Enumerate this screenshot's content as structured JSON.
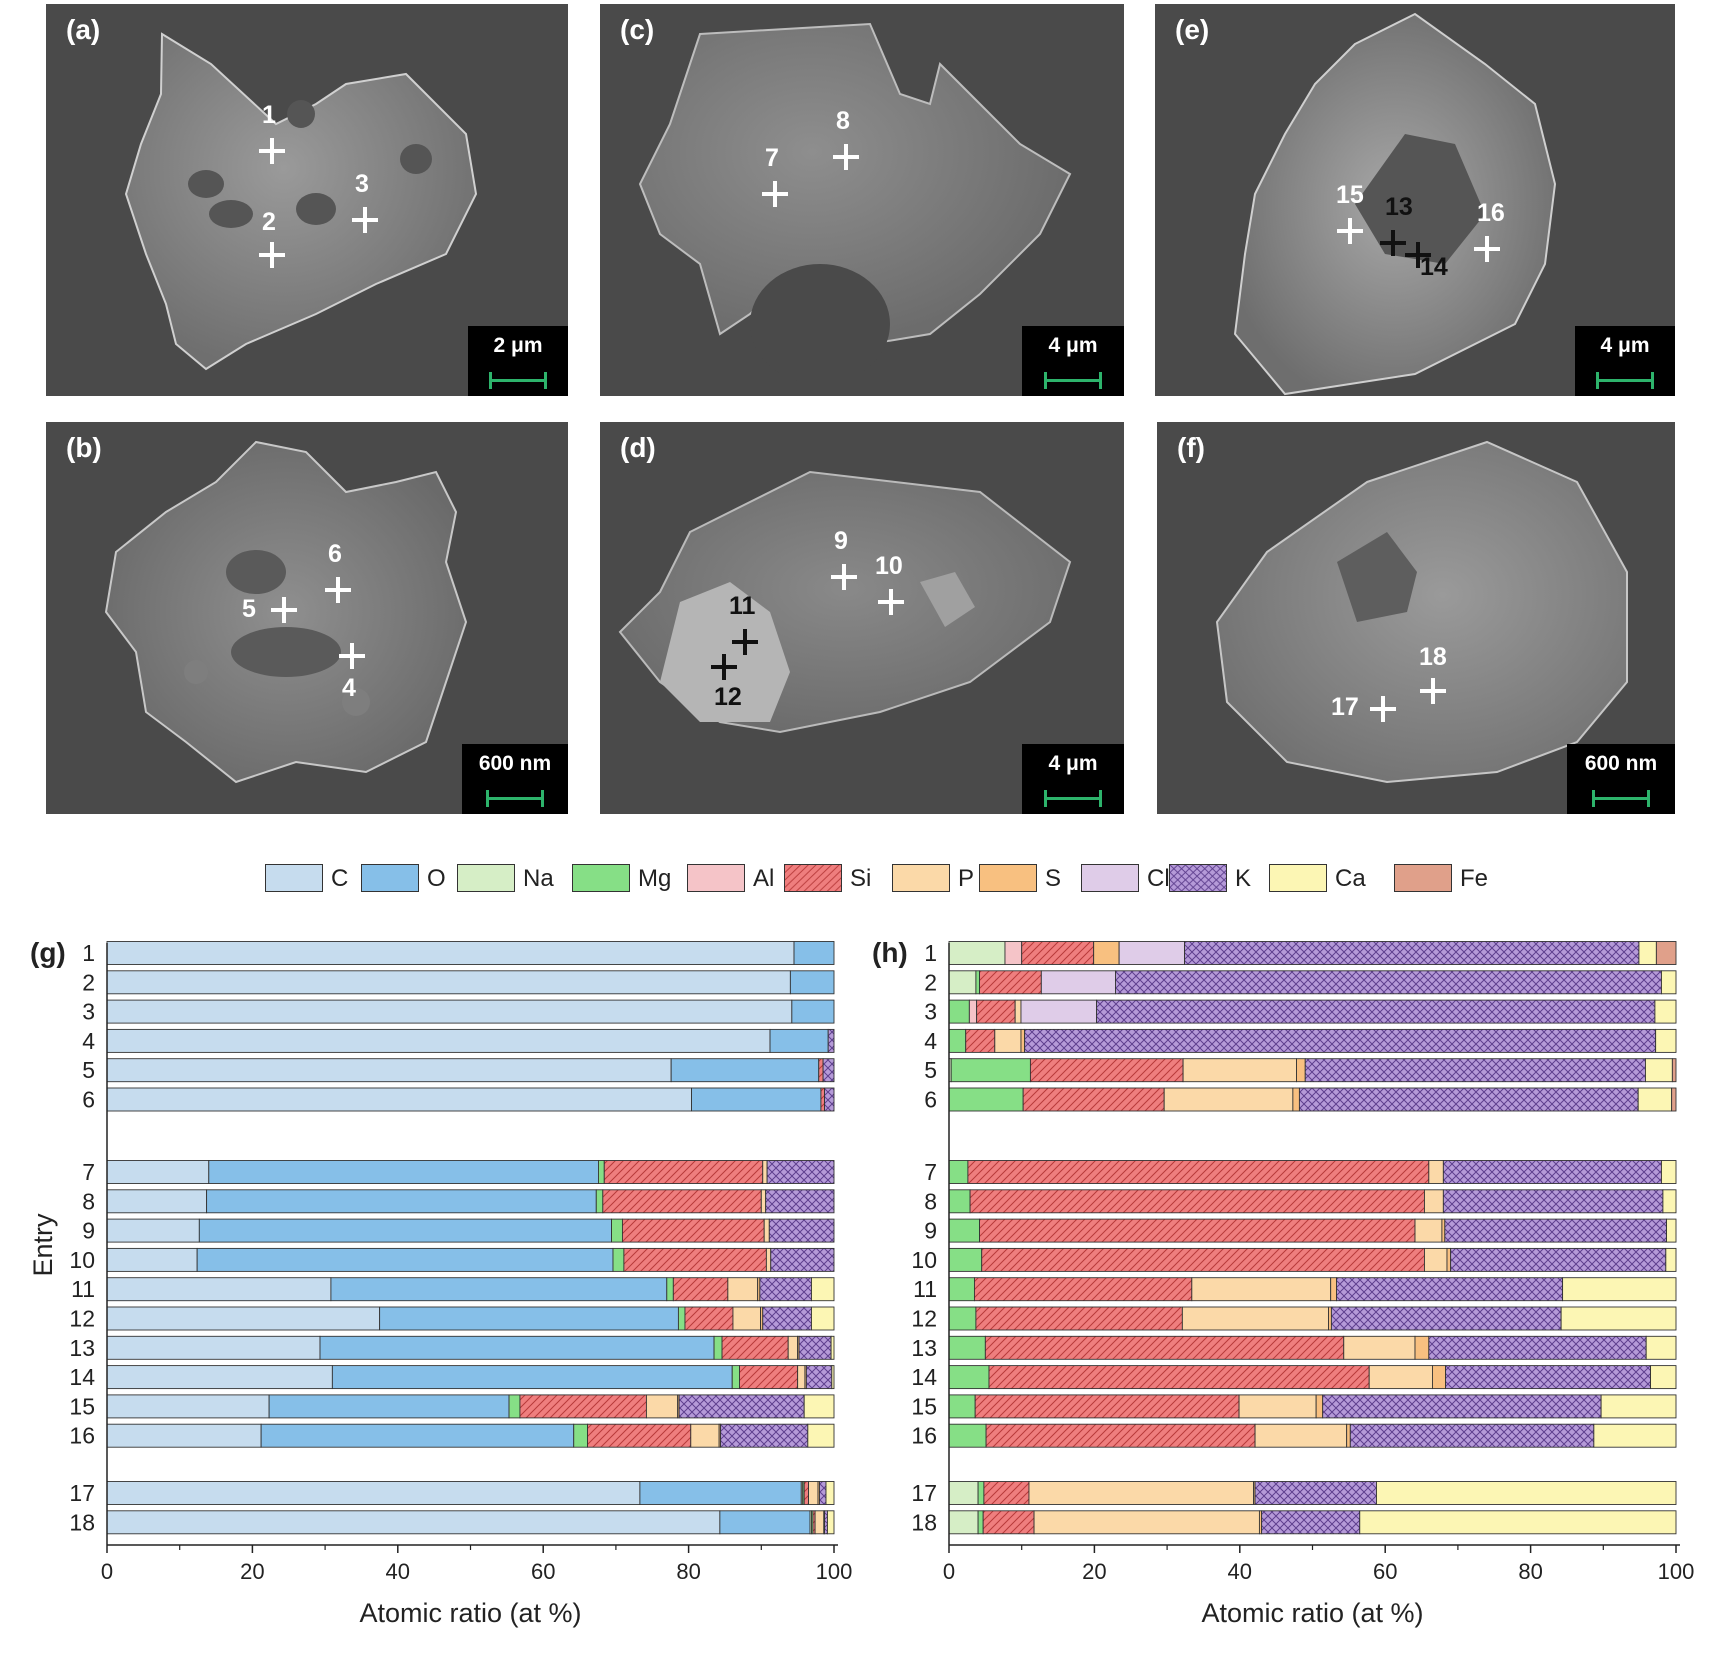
{
  "sem_panels": [
    {
      "label": "(a)",
      "scale": "2 μm",
      "markers": [
        {
          "n": "1"
        },
        {
          "n": "2"
        },
        {
          "n": "3"
        }
      ]
    },
    {
      "label": "(b)",
      "scale": "600 nm",
      "markers": [
        {
          "n": "6"
        },
        {
          "n": "5"
        },
        {
          "n": "4"
        }
      ]
    },
    {
      "label": "(c)",
      "scale": "4 μm",
      "markers": [
        {
          "n": "8"
        },
        {
          "n": "7"
        }
      ]
    },
    {
      "label": "(d)",
      "scale": "4 μm",
      "markers": [
        {
          "n": "9"
        },
        {
          "n": "10"
        },
        {
          "n": "11"
        },
        {
          "n": "12"
        }
      ]
    },
    {
      "label": "(e)",
      "scale": "4 μm",
      "markers": [
        {
          "n": "15"
        },
        {
          "n": "13"
        },
        {
          "n": "14"
        },
        {
          "n": "16"
        }
      ]
    },
    {
      "label": "(f)",
      "scale": "600 nm",
      "markers": [
        {
          "n": "18"
        },
        {
          "n": "17"
        }
      ]
    }
  ],
  "legend": [
    {
      "name": "C",
      "color": "#c6dcee",
      "pattern": "none"
    },
    {
      "name": "O",
      "color": "#86bfe8",
      "pattern": "none"
    },
    {
      "name": "Na",
      "color": "#d6eec6",
      "pattern": "none"
    },
    {
      "name": "Mg",
      "color": "#86df86",
      "pattern": "none"
    },
    {
      "name": "Al",
      "color": "#f5c4c8",
      "pattern": "none"
    },
    {
      "name": "Si",
      "color": "#ef7e7e",
      "pattern": "diag"
    },
    {
      "name": "P",
      "color": "#fbd9a8",
      "pattern": "none"
    },
    {
      "name": "S",
      "color": "#f8c080",
      "pattern": "none"
    },
    {
      "name": "Cl",
      "color": "#dfcce8",
      "pattern": "none"
    },
    {
      "name": "K",
      "color": "#b59ad8",
      "pattern": "cross"
    },
    {
      "name": "Ca",
      "color": "#fcf6b4",
      "pattern": "none"
    },
    {
      "name": "Fe",
      "color": "#e0a08a",
      "pattern": "none"
    }
  ],
  "chart_data": [
    {
      "type": "bar",
      "orientation": "horizontal",
      "stacked": true,
      "panel_label": "(g)",
      "xlabel": "Atomic ratio (at %)",
      "ylabel": "Entry",
      "xlim": [
        0,
        100
      ],
      "xticks": [
        "0",
        "20",
        "40",
        "60",
        "80",
        "100"
      ],
      "groups": [
        [
          1,
          2,
          3,
          4,
          5,
          6
        ],
        [
          7,
          8,
          9,
          10,
          11,
          12,
          13,
          14,
          15,
          16
        ],
        [
          17,
          18
        ]
      ],
      "rows": [
        {
          "entry": "1",
          "values": {
            "C": 94.5,
            "O": 5.5
          }
        },
        {
          "entry": "2",
          "values": {
            "C": 94,
            "O": 6
          }
        },
        {
          "entry": "3",
          "values": {
            "C": 94.2,
            "O": 5.8
          }
        },
        {
          "entry": "4",
          "values": {
            "C": 91.2,
            "O": 8,
            "K": 0.8
          }
        },
        {
          "entry": "5",
          "values": {
            "C": 77.6,
            "O": 20.3,
            "Si": 0.6,
            "K": 1.5
          }
        },
        {
          "entry": "6",
          "values": {
            "C": 80.4,
            "O": 17.8,
            "Si": 0.5,
            "K": 1.3
          }
        },
        {
          "entry": "7",
          "values": {
            "C": 14,
            "O": 53.6,
            "Mg": 0.8,
            "Si": 21.8,
            "P": 0.6,
            "K": 9.2
          }
        },
        {
          "entry": "8",
          "values": {
            "C": 13.7,
            "O": 53.6,
            "Mg": 0.9,
            "Si": 21.8,
            "P": 0.6,
            "K": 9.4
          }
        },
        {
          "entry": "9",
          "values": {
            "C": 12.7,
            "O": 56.7,
            "Mg": 1.5,
            "Si": 19.5,
            "P": 0.7,
            "K": 8.9
          }
        },
        {
          "entry": "10",
          "values": {
            "C": 12.4,
            "O": 57.2,
            "Mg": 1.5,
            "Si": 19.6,
            "P": 0.6,
            "K": 8.7
          }
        },
        {
          "entry": "11",
          "values": {
            "C": 30.8,
            "O": 46.2,
            "Mg": 0.9,
            "Si": 7.5,
            "P": 4.1,
            "S": 0.3,
            "K": 7.1,
            "Ca": 3.1
          }
        },
        {
          "entry": "12",
          "values": {
            "C": 37.5,
            "O": 41.1,
            "Mg": 0.9,
            "Si": 6.6,
            "P": 3.8,
            "S": 0.3,
            "K": 6.7,
            "Ca": 3.1
          }
        },
        {
          "entry": "13",
          "values": {
            "C": 29.3,
            "O": 54.2,
            "Mg": 1.1,
            "Si": 9.1,
            "P": 1.3,
            "S": 0.2,
            "K": 4.4,
            "Ca": 0.4
          }
        },
        {
          "entry": "14",
          "values": {
            "C": 31,
            "O": 55,
            "Mg": 1,
            "Si": 8,
            "P": 1,
            "S": 0.2,
            "K": 3.5,
            "Ca": 0.3
          }
        },
        {
          "entry": "15",
          "values": {
            "C": 22.3,
            "O": 33,
            "Mg": 1.5,
            "Si": 17.4,
            "P": 4.3,
            "S": 0.2,
            "K": 17.2,
            "Ca": 4.1
          }
        },
        {
          "entry": "16",
          "values": {
            "C": 21.2,
            "O": 43,
            "Mg": 1.9,
            "Si": 14.2,
            "P": 3.9,
            "S": 0.2,
            "K": 12,
            "Ca": 3.6
          }
        },
        {
          "entry": "17",
          "values": {
            "C": 73.3,
            "O": 22.2,
            "Na": 0.2,
            "Mg": 0.2,
            "Si": 0.6,
            "P": 1.3,
            "S": 0.2,
            "K": 0.9,
            "Ca": 1.1
          }
        },
        {
          "entry": "18",
          "values": {
            "C": 84.3,
            "O": 12.4,
            "Na": 0.2,
            "Mg": 0.2,
            "Si": 0.3,
            "P": 1.2,
            "S": 0.1,
            "K": 0.4,
            "Ca": 0.9
          }
        }
      ]
    },
    {
      "type": "bar",
      "orientation": "horizontal",
      "stacked": true,
      "panel_label": "(h)",
      "xlabel": "Atomic ratio (at %)",
      "xlim": [
        0,
        100
      ],
      "xticks": [
        "0",
        "20",
        "40",
        "60",
        "80",
        "100"
      ],
      "groups": [
        [
          1,
          2,
          3,
          4,
          5,
          6
        ],
        [
          7,
          8,
          9,
          10,
          11,
          12,
          13,
          14,
          15,
          16
        ],
        [
          17,
          18
        ]
      ],
      "rows": [
        {
          "entry": "1",
          "values": {
            "Na": 7.7,
            "Al": 2.3,
            "Si": 9.9,
            "S": 3.5,
            "Cl": 9,
            "K": 62.5,
            "Ca": 2.4,
            "Fe": 2.7
          }
        },
        {
          "entry": "2",
          "values": {
            "Na": 3.7,
            "Mg": 0.5,
            "Si": 8.5,
            "Cl": 10.2,
            "K": 75.1,
            "Ca": 2
          }
        },
        {
          "entry": "3",
          "values": {
            "Mg": 2.8,
            "Al": 1,
            "Si": 5.3,
            "P": 0.8,
            "Cl": 10.4,
            "K": 76.8,
            "Ca": 2.9
          }
        },
        {
          "entry": "4",
          "values": {
            "Mg": 2.3,
            "Si": 4,
            "P": 3.6,
            "S": 0.5,
            "K": 86.8,
            "Ca": 2.8
          }
        },
        {
          "entry": "5",
          "values": {
            "Na": 0.3,
            "Mg": 10.9,
            "Si": 21,
            "P": 15.6,
            "S": 1.2,
            "K": 46.8,
            "Ca": 3.7,
            "Fe": 0.5
          }
        },
        {
          "entry": "6",
          "values": {
            "Mg": 10.2,
            "Si": 19.4,
            "P": 17.7,
            "S": 0.9,
            "K": 46.6,
            "Ca": 4.6,
            "Fe": 0.6
          }
        },
        {
          "entry": "7",
          "values": {
            "Mg": 2.6,
            "Si": 63.4,
            "P": 2,
            "K": 30,
            "Ca": 2
          }
        },
        {
          "entry": "8",
          "values": {
            "Mg": 2.9,
            "Si": 62.5,
            "P": 2.6,
            "K": 30.2,
            "Ca": 1.8
          }
        },
        {
          "entry": "9",
          "values": {
            "Mg": 4.2,
            "Si": 59.9,
            "P": 3.7,
            "S": 0.4,
            "K": 30.5,
            "Ca": 1.3
          }
        },
        {
          "entry": "10",
          "values": {
            "Mg": 4.5,
            "Si": 60.9,
            "P": 3.1,
            "S": 0.5,
            "K": 29.6,
            "Ca": 1.4
          }
        },
        {
          "entry": "11",
          "values": {
            "Mg": 3.5,
            "Si": 29.9,
            "P": 19.1,
            "S": 0.8,
            "K": 31.1,
            "Ca": 15.6
          }
        },
        {
          "entry": "12",
          "values": {
            "Mg": 3.7,
            "Si": 28.4,
            "P": 20.1,
            "S": 0.4,
            "K": 31.6,
            "Ca": 15.8
          }
        },
        {
          "entry": "13",
          "values": {
            "Mg": 5,
            "Si": 49.3,
            "P": 9.8,
            "S": 1.9,
            "K": 29.9,
            "Ca": 4.1
          }
        },
        {
          "entry": "14",
          "values": {
            "Mg": 5.5,
            "Si": 52.3,
            "P": 8.7,
            "S": 1.8,
            "K": 28.2,
            "Ca": 3.5
          }
        },
        {
          "entry": "15",
          "values": {
            "Mg": 3.6,
            "Si": 36.3,
            "P": 10.6,
            "S": 0.9,
            "K": 38.3,
            "Ca": 10.3
          }
        },
        {
          "entry": "16",
          "values": {
            "Mg": 5.1,
            "Si": 37,
            "P": 12.6,
            "S": 0.5,
            "K": 33.5,
            "Ca": 11.3
          }
        },
        {
          "entry": "17",
          "values": {
            "Na": 4,
            "Mg": 0.8,
            "Si": 6.2,
            "P": 30.9,
            "S": 0.2,
            "K": 16.7,
            "Ca": 41.2
          }
        },
        {
          "entry": "18",
          "values": {
            "Na": 4,
            "Mg": 0.7,
            "Si": 7,
            "P": 31,
            "S": 0.3,
            "K": 13.5,
            "Ca": 43.5
          }
        }
      ]
    }
  ]
}
